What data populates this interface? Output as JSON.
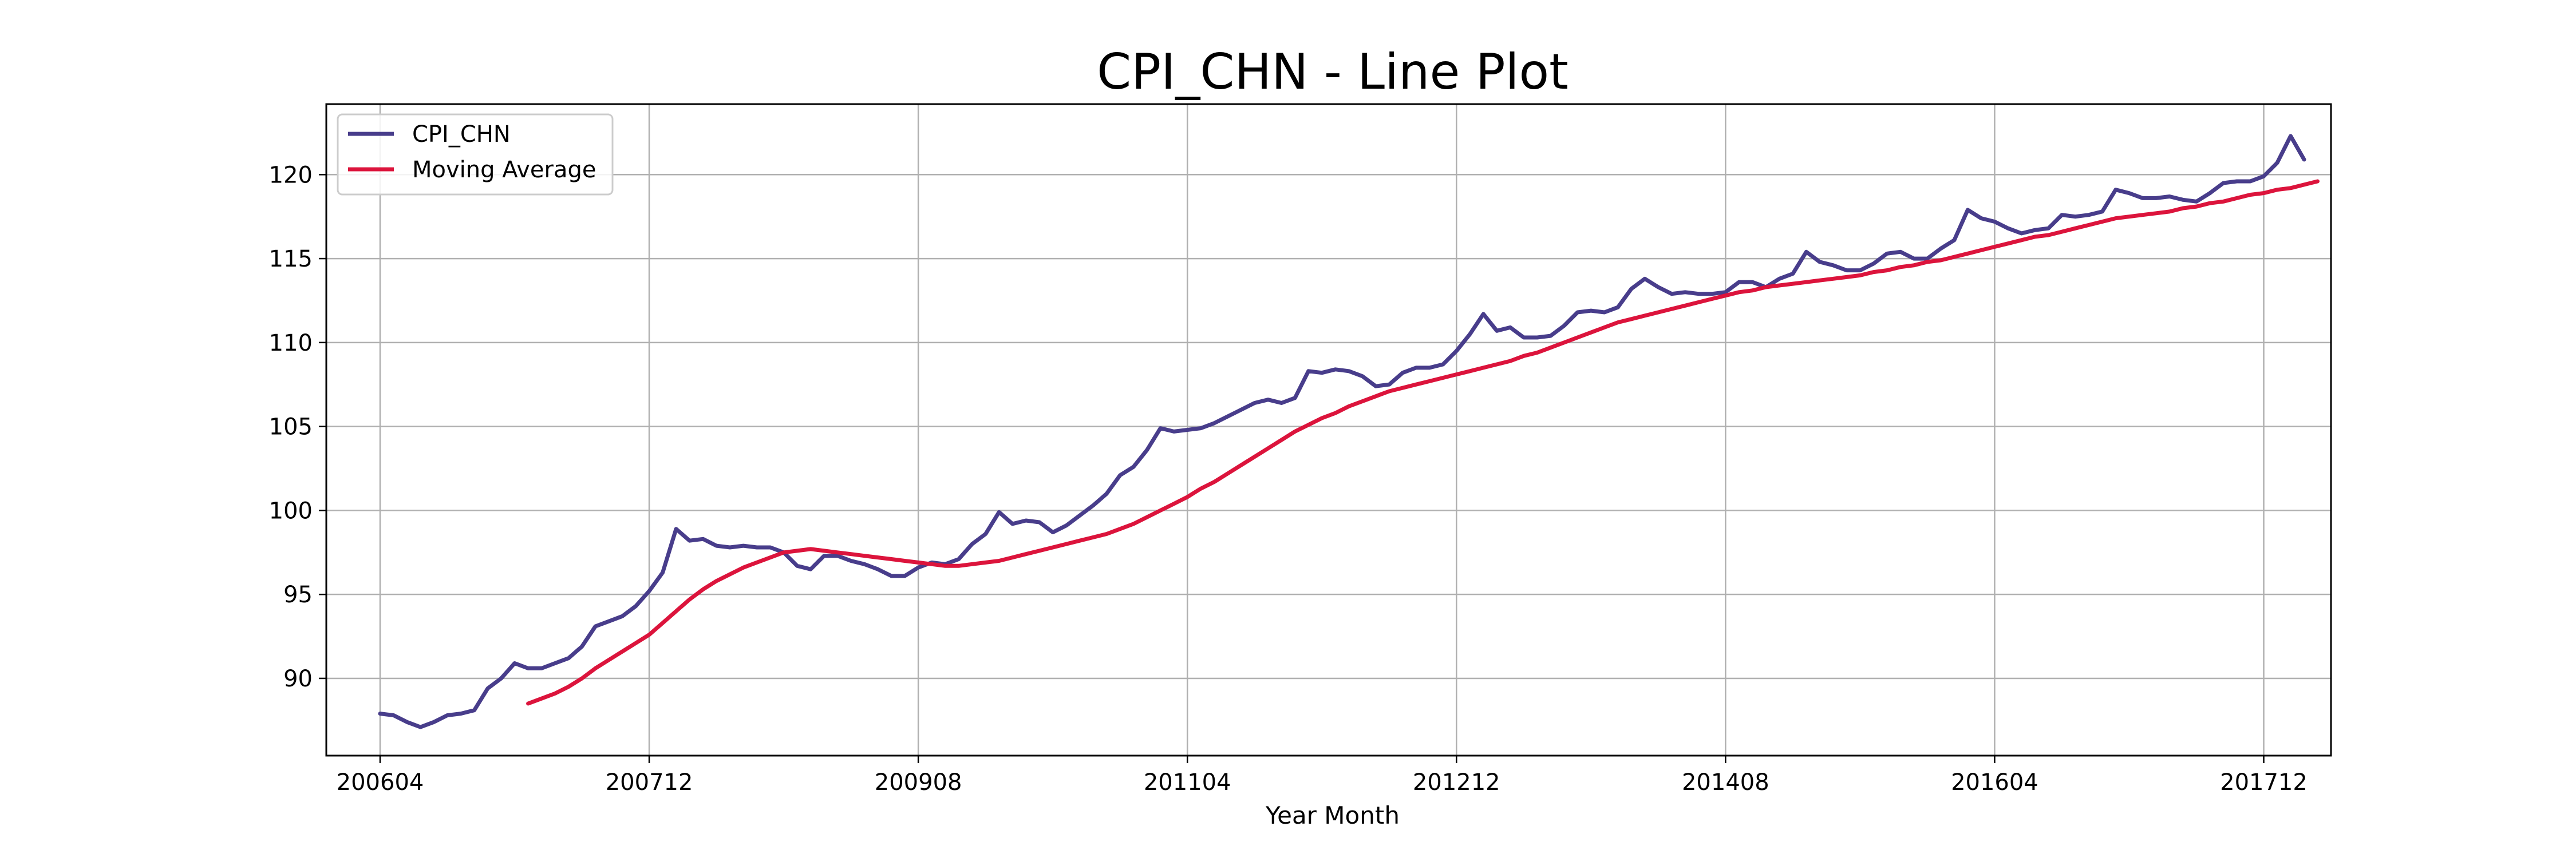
{
  "chart_data": {
    "type": "line",
    "title": "CPI_CHN - Line Plot",
    "xlabel": "Year Month",
    "ylabel": "",
    "x_start": "200604",
    "x_ticks": [
      "200604",
      "200712",
      "200908",
      "201104",
      "201212",
      "201408",
      "201604",
      "201712"
    ],
    "y_ticks": [
      90,
      95,
      100,
      105,
      110,
      115,
      120
    ],
    "ylim": [
      85.4,
      124.2
    ],
    "xlim": [
      "200512",
      "201805"
    ],
    "grid": true,
    "legend": "upper left",
    "series": [
      {
        "name": "CPI_CHN",
        "color": "#483d8b",
        "values": [
          87.9,
          87.8,
          87.4,
          87.1,
          87.4,
          87.8,
          87.9,
          88.1,
          89.4,
          90.0,
          90.9,
          90.6,
          90.6,
          90.9,
          91.2,
          91.9,
          93.1,
          93.4,
          93.7,
          94.3,
          95.2,
          96.3,
          98.9,
          98.2,
          98.3,
          97.9,
          97.8,
          97.9,
          97.8,
          97.8,
          97.5,
          96.7,
          96.5,
          97.3,
          97.3,
          97.0,
          96.8,
          96.5,
          96.1,
          96.1,
          96.6,
          96.9,
          96.8,
          97.1,
          98.0,
          98.6,
          99.9,
          99.2,
          99.4,
          99.3,
          98.7,
          99.1,
          99.7,
          100.3,
          101.0,
          102.1,
          102.6,
          103.6,
          104.9,
          104.7,
          104.8,
          104.9,
          105.2,
          105.6,
          106.0,
          106.4,
          106.6,
          106.4,
          106.7,
          108.3,
          108.2,
          108.4,
          108.3,
          108.0,
          107.4,
          107.5,
          108.2,
          108.5,
          108.5,
          108.7,
          109.5,
          110.5,
          111.7,
          110.7,
          110.9,
          110.3,
          110.3,
          110.4,
          111.0,
          111.8,
          111.9,
          111.8,
          112.1,
          113.2,
          113.8,
          113.3,
          112.9,
          113.0,
          112.9,
          112.9,
          113.0,
          113.6,
          113.6,
          113.3,
          113.8,
          114.1,
          115.4,
          114.8,
          114.6,
          114.3,
          114.3,
          114.7,
          115.3,
          115.4,
          115.0,
          115.0,
          115.6,
          116.1,
          117.9,
          117.4,
          117.2,
          116.8,
          116.5,
          116.7,
          116.8,
          117.6,
          117.5,
          117.6,
          117.8,
          119.1,
          118.9,
          118.6,
          118.6,
          118.7,
          118.5,
          118.4,
          118.9,
          119.5,
          119.6,
          119.6,
          119.9,
          120.7,
          122.3,
          120.9
        ]
      },
      {
        "name": "Moving Average",
        "color": "#dc143c",
        "offset": 11,
        "values": [
          88.5,
          88.8,
          89.1,
          89.5,
          90.0,
          90.6,
          91.1,
          91.6,
          92.1,
          92.6,
          93.3,
          94.0,
          94.7,
          95.3,
          95.8,
          96.2,
          96.6,
          96.9,
          97.2,
          97.5,
          97.6,
          97.7,
          97.6,
          97.5,
          97.4,
          97.3,
          97.2,
          97.1,
          97.0,
          96.9,
          96.8,
          96.7,
          96.7,
          96.8,
          96.9,
          97.0,
          97.2,
          97.4,
          97.6,
          97.8,
          98.0,
          98.2,
          98.4,
          98.6,
          98.9,
          99.2,
          99.6,
          100.0,
          100.4,
          100.8,
          101.3,
          101.7,
          102.2,
          102.7,
          103.2,
          103.7,
          104.2,
          104.7,
          105.1,
          105.5,
          105.8,
          106.2,
          106.5,
          106.8,
          107.1,
          107.3,
          107.5,
          107.7,
          107.9,
          108.1,
          108.3,
          108.5,
          108.7,
          108.9,
          109.2,
          109.4,
          109.7,
          110.0,
          110.3,
          110.6,
          110.9,
          111.2,
          111.4,
          111.6,
          111.8,
          112.0,
          112.2,
          112.4,
          112.6,
          112.8,
          113.0,
          113.1,
          113.3,
          113.4,
          113.5,
          113.6,
          113.7,
          113.8,
          113.9,
          114.0,
          114.2,
          114.3,
          114.5,
          114.6,
          114.8,
          114.9,
          115.1,
          115.3,
          115.5,
          115.7,
          115.9,
          116.1,
          116.3,
          116.4,
          116.6,
          116.8,
          117.0,
          117.2,
          117.4,
          117.5,
          117.6,
          117.7,
          117.8,
          118.0,
          118.1,
          118.3,
          118.4,
          118.6,
          118.8,
          118.9,
          119.1,
          119.2,
          119.4,
          119.6
        ]
      }
    ]
  }
}
